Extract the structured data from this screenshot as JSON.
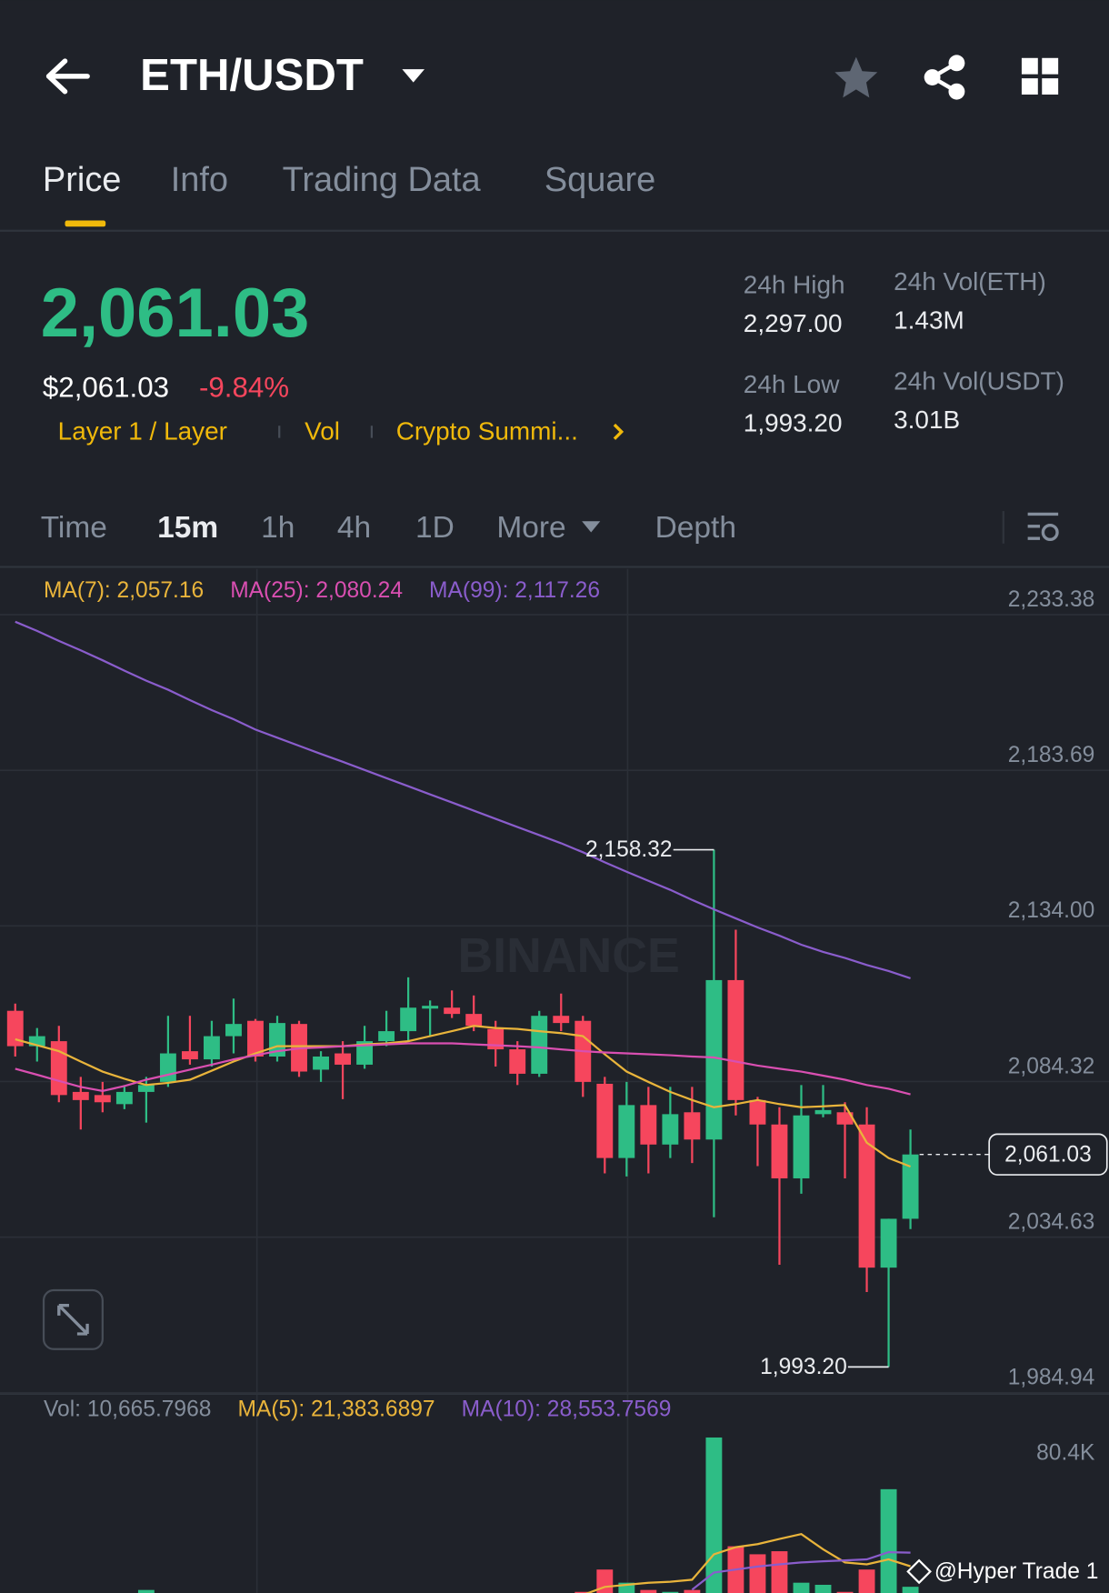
{
  "header": {
    "pair": "ETH/USDT"
  },
  "tabs": [
    "Price",
    "Info",
    "Trading Data",
    "Square"
  ],
  "ticker": {
    "price": "2,061.03",
    "usd_price": "$2,061.03",
    "change": "-9.84%",
    "tags": [
      "Layer 1 / Layer",
      "Vol",
      "Crypto Summi..."
    ],
    "stats": [
      {
        "label": "24h High",
        "value": "2,297.00"
      },
      {
        "label": "24h Low",
        "value": "1,993.20"
      },
      {
        "label": "24h Vol(ETH)",
        "value": "1.43M"
      },
      {
        "label": "24h Vol(USDT)",
        "value": "3.01B"
      }
    ]
  },
  "intervals": [
    "Time",
    "15m",
    "1h",
    "4h",
    "1D",
    "More",
    "Depth"
  ],
  "watermark": "@Hyper Trade 1",
  "chart_data": [
    {
      "type": "candlestick",
      "watermark": "BINANCE",
      "up_color": "#2ebd85",
      "down_color": "#f6465d",
      "open": [
        2106.9,
        2095.6,
        2097.2,
        2081.0,
        2080.0,
        2077.1,
        2081.0,
        2084.2,
        2094.0,
        2091.4,
        2098.8,
        2103.7,
        2092.3,
        2102.7,
        2088.1,
        2093.3,
        2089.7,
        2097.2,
        2100.4,
        2107.6,
        2107.9,
        2105.9,
        2101.1,
        2094.6,
        2086.8,
        2105.3,
        2103.7,
        2083.6,
        2059.9,
        2076.8,
        2064.2,
        2074.5,
        2065.8,
        2116.7,
        2078.4,
        2070.6,
        2053.4,
        2073.9,
        2074.5,
        2070.6,
        2024.9,
        2040.5
      ],
      "high": [
        2109.2,
        2101.4,
        2102.1,
        2085.8,
        2084.2,
        2083.2,
        2085.8,
        2105.3,
        2105.3,
        2103.7,
        2110.8,
        2104.3,
        2105.3,
        2103.7,
        2094.0,
        2097.2,
        2102.1,
        2106.9,
        2117.6,
        2110.2,
        2113.4,
        2111.8,
        2103.7,
        2097.2,
        2106.9,
        2112.4,
        2105.3,
        2085.8,
        2084.2,
        2082.6,
        2082.6,
        2082.6,
        2158.32,
        2132.8,
        2079.4,
        2076.1,
        2083.2,
        2083.2,
        2077.7,
        2076.1,
        2040.5,
        2069.0
      ],
      "low": [
        2092.3,
        2090.7,
        2077.7,
        2069.0,
        2074.5,
        2075.5,
        2071.2,
        2082.6,
        2089.7,
        2089.1,
        2093.3,
        2090.7,
        2090.7,
        2085.8,
        2084.2,
        2078.7,
        2088.4,
        2095.6,
        2097.2,
        2098.8,
        2104.6,
        2100.4,
        2089.1,
        2083.2,
        2085.8,
        2100.4,
        2079.4,
        2055.0,
        2054.0,
        2055.0,
        2059.9,
        2058.3,
        2041.0,
        2073.5,
        2057.3,
        2025.8,
        2048.5,
        2072.9,
        2053.4,
        2017.1,
        1993.2,
        2037.2
      ],
      "close": [
        2095.6,
        2098.8,
        2080.0,
        2078.4,
        2077.7,
        2081.0,
        2083.2,
        2093.3,
        2091.4,
        2098.8,
        2102.7,
        2092.3,
        2103.0,
        2087.5,
        2092.3,
        2089.7,
        2097.2,
        2100.4,
        2107.9,
        2108.5,
        2105.9,
        2102.1,
        2094.6,
        2086.8,
        2105.3,
        2103.0,
        2084.2,
        2059.9,
        2076.8,
        2064.2,
        2073.9,
        2065.8,
        2116.7,
        2078.4,
        2070.6,
        2053.4,
        2073.5,
        2075.2,
        2070.6,
        2024.9,
        2040.5,
        2061.03
      ],
      "series": [
        {
          "name": "MA(7): 2,057.16",
          "color": "#e9b43b",
          "values": [
            2097.8,
            2095.9,
            2094.0,
            2090.7,
            2087.5,
            2085.2,
            2083.2,
            2083.9,
            2084.9,
            2087.8,
            2090.7,
            2093.3,
            2095.6,
            2095.6,
            2095.6,
            2095.6,
            2096.2,
            2096.5,
            2097.2,
            2098.8,
            2100.4,
            2102.1,
            2101.4,
            2101.1,
            2100.4,
            2099.8,
            2098.8,
            2093.0,
            2087.5,
            2084.2,
            2081.0,
            2078.4,
            2076.1,
            2077.1,
            2078.4,
            2077.1,
            2076.1,
            2076.4,
            2076.8,
            2064.8,
            2059.9,
            2057.16
          ]
        },
        {
          "name": "MA(25): 2,080.24",
          "color": "#d94fb1",
          "values": [
            2088.4,
            2086.5,
            2084.5,
            2082.6,
            2081.3,
            2082.9,
            2084.9,
            2086.5,
            2088.1,
            2089.7,
            2091.4,
            2092.7,
            2094.0,
            2094.9,
            2095.2,
            2095.6,
            2095.9,
            2096.2,
            2096.5,
            2096.5,
            2096.5,
            2096.2,
            2095.9,
            2095.6,
            2095.2,
            2094.6,
            2094.0,
            2093.6,
            2093.3,
            2093.0,
            2092.7,
            2092.3,
            2092.0,
            2090.7,
            2089.4,
            2088.4,
            2087.5,
            2086.2,
            2084.9,
            2083.2,
            2082.0,
            2080.24
          ]
        },
        {
          "name": "MA(99): 2,117.26",
          "color": "#8a5dcc",
          "values": [
            2231.1,
            2228.2,
            2225.0,
            2222.0,
            2218.8,
            2215.5,
            2212.3,
            2209.4,
            2206.1,
            2202.9,
            2200.0,
            2196.7,
            2194.1,
            2191.5,
            2188.9,
            2186.4,
            2183.8,
            2181.2,
            2178.6,
            2176.0,
            2173.4,
            2170.8,
            2168.2,
            2165.6,
            2163.0,
            2160.4,
            2157.5,
            2154.3,
            2151.3,
            2148.4,
            2145.5,
            2142.3,
            2139.3,
            2136.4,
            2133.5,
            2130.9,
            2128.0,
            2125.7,
            2123.8,
            2121.5,
            2119.6,
            2117.26
          ]
        }
      ],
      "annotations": {
        "high": "2,158.32",
        "low": "1,993.20",
        "last": "2,061.03"
      },
      "ylim": [
        1984.94,
        2247.97
      ],
      "yticks": [
        {
          "value": 2233.38,
          "label": "2,233.38"
        },
        {
          "value": 2183.69,
          "label": "2,183.69"
        },
        {
          "value": 2134.0,
          "label": "2,134.00"
        },
        {
          "value": 2084.32,
          "label": "2,084.32"
        },
        {
          "value": 2034.63,
          "label": "2,034.63"
        },
        {
          "value": 1984.94,
          "label": "1,984.94"
        }
      ],
      "grid": true
    },
    {
      "type": "bar",
      "name": "Vol: 10,665.7968",
      "values": [
        6000,
        5000,
        7000,
        4000,
        5000,
        6000,
        9000,
        7000,
        5000,
        6000,
        5000,
        6000,
        5000,
        7000,
        4000,
        5000,
        6000,
        5000,
        7000,
        4000,
        5000,
        4000,
        6000,
        5000,
        7000,
        5000,
        8000,
        19700,
        12800,
        9000,
        8000,
        9000,
        88900,
        31900,
        27700,
        29300,
        12800,
        11700,
        8000,
        19700,
        61800,
        10665.7968
      ],
      "series": [
        {
          "name": "MA(5): 21,383.6897",
          "color": "#e9b43b",
          "values": [
            null,
            null,
            null,
            null,
            null,
            null,
            null,
            null,
            null,
            null,
            null,
            null,
            null,
            null,
            null,
            null,
            null,
            null,
            null,
            null,
            null,
            null,
            null,
            null,
            null,
            null,
            6400,
            10600,
            11700,
            12800,
            13300,
            14400,
            27700,
            31400,
            33000,
            35700,
            38300,
            30300,
            23400,
            22400,
            25000,
            21383.6897
          ]
        },
        {
          "name": "MA(10): 28,553.7569",
          "color": "#8a5dcc",
          "values": [
            null,
            null,
            null,
            null,
            null,
            null,
            null,
            null,
            null,
            null,
            null,
            null,
            null,
            null,
            null,
            null,
            null,
            null,
            null,
            null,
            null,
            null,
            null,
            null,
            null,
            null,
            null,
            null,
            null,
            null,
            null,
            9100,
            18100,
            19700,
            21300,
            22400,
            23400,
            24000,
            24500,
            25000,
            28800,
            28553.7569
          ]
        }
      ],
      "ylim": [
        0,
        110200
      ],
      "yticks": [
        {
          "value": 80400,
          "label": "80.4K"
        }
      ],
      "grid": false
    }
  ]
}
